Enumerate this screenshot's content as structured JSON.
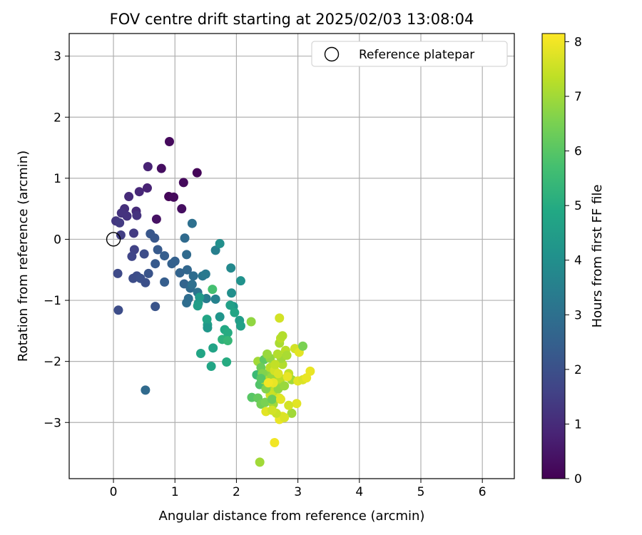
{
  "chart_data": {
    "type": "scatter",
    "title": "FOV centre drift starting at 2025/02/03 13:08:04",
    "xlabel": "Angular distance from reference (arcmin)",
    "ylabel": "Rotation from reference (arcmin)",
    "xlim": [
      -0.72,
      6.52
    ],
    "ylim": [
      -3.92,
      3.37
    ],
    "xticks": [
      0,
      1,
      2,
      3,
      4,
      5,
      6
    ],
    "yticks": [
      -3,
      -2,
      -1,
      0,
      1,
      2,
      3
    ],
    "xtick_labels": [
      "0",
      "1",
      "2",
      "3",
      "4",
      "5",
      "6"
    ],
    "ytick_labels": [
      "−3",
      "−2",
      "−1",
      "0",
      "1",
      "2",
      "3"
    ],
    "grid": true,
    "legend": {
      "placement": "top-right",
      "entries": [
        "Reference platepar"
      ]
    },
    "reference_point": {
      "x": 0,
      "y": 0,
      "label": "Reference platepar"
    },
    "colorbar": {
      "label": "Hours from first FF file",
      "range": [
        0,
        8.15
      ],
      "ticks": [
        0,
        1,
        2,
        3,
        4,
        5,
        6,
        7,
        8
      ],
      "tick_labels": [
        "0",
        "1",
        "2",
        "3",
        "4",
        "5",
        "6",
        "7",
        "8"
      ],
      "colormap": "viridis"
    },
    "points": [
      {
        "x": 0.91,
        "y": 1.6,
        "h": 0.2
      },
      {
        "x": 1.36,
        "y": 1.09,
        "h": 0.1
      },
      {
        "x": 0.78,
        "y": 1.16,
        "h": 0.3
      },
      {
        "x": 1.14,
        "y": 0.93,
        "h": 0.2
      },
      {
        "x": 0.9,
        "y": 0.7,
        "h": 0.1
      },
      {
        "x": 0.98,
        "y": 0.69,
        "h": 0.2
      },
      {
        "x": 1.11,
        "y": 0.5,
        "h": 0.3
      },
      {
        "x": 0.7,
        "y": 0.33,
        "h": 0.4
      },
      {
        "x": 0.56,
        "y": 1.19,
        "h": 0.8
      },
      {
        "x": 0.55,
        "y": 0.84,
        "h": 0.8
      },
      {
        "x": 0.42,
        "y": 0.78,
        "h": 0.9
      },
      {
        "x": 0.25,
        "y": 0.7,
        "h": 1.0
      },
      {
        "x": 0.18,
        "y": 0.5,
        "h": 1.1
      },
      {
        "x": 0.13,
        "y": 0.43,
        "h": 1.2
      },
      {
        "x": 0.22,
        "y": 0.38,
        "h": 1.2
      },
      {
        "x": 0.37,
        "y": 0.46,
        "h": 1.0
      },
      {
        "x": 0.38,
        "y": 0.39,
        "h": 1.2
      },
      {
        "x": 0.04,
        "y": 0.3,
        "h": 1.3
      },
      {
        "x": 0.1,
        "y": 0.27,
        "h": 1.4
      },
      {
        "x": 0.12,
        "y": 0.07,
        "h": 1.5
      },
      {
        "x": 0.33,
        "y": 0.1,
        "h": 1.4
      },
      {
        "x": 0.34,
        "y": -0.17,
        "h": 1.6
      },
      {
        "x": 0.3,
        "y": -0.28,
        "h": 1.7
      },
      {
        "x": 0.5,
        "y": -0.24,
        "h": 1.9
      },
      {
        "x": 0.07,
        "y": -0.56,
        "h": 1.8
      },
      {
        "x": 0.32,
        "y": -0.64,
        "h": 1.9
      },
      {
        "x": 0.38,
        "y": -0.6,
        "h": 1.9
      },
      {
        "x": 0.44,
        "y": -0.64,
        "h": 2.0
      },
      {
        "x": 0.52,
        "y": -0.71,
        "h": 2.0
      },
      {
        "x": 0.57,
        "y": -0.56,
        "h": 2.1
      },
      {
        "x": 0.08,
        "y": -1.16,
        "h": 1.9
      },
      {
        "x": 0.68,
        "y": -1.1,
        "h": 2.1
      },
      {
        "x": 0.52,
        "y": -2.47,
        "h": 2.8
      },
      {
        "x": 0.6,
        "y": 0.09,
        "h": 2.2
      },
      {
        "x": 0.67,
        "y": 0.02,
        "h": 2.2
      },
      {
        "x": 0.72,
        "y": -0.17,
        "h": 2.3
      },
      {
        "x": 0.68,
        "y": -0.4,
        "h": 2.3
      },
      {
        "x": 0.83,
        "y": -0.27,
        "h": 2.4
      },
      {
        "x": 0.83,
        "y": -0.7,
        "h": 2.4
      },
      {
        "x": 0.95,
        "y": -0.4,
        "h": 2.5
      },
      {
        "x": 1.0,
        "y": -0.36,
        "h": 2.5
      },
      {
        "x": 1.08,
        "y": -0.55,
        "h": 2.6
      },
      {
        "x": 1.15,
        "y": -0.73,
        "h": 2.6
      },
      {
        "x": 1.2,
        "y": -0.5,
        "h": 2.7
      },
      {
        "x": 1.16,
        "y": 0.02,
        "h": 2.8
      },
      {
        "x": 1.19,
        "y": -0.25,
        "h": 2.8
      },
      {
        "x": 1.28,
        "y": 0.26,
        "h": 3.0
      },
      {
        "x": 1.25,
        "y": -0.8,
        "h": 2.8
      },
      {
        "x": 1.3,
        "y": -0.6,
        "h": 2.9
      },
      {
        "x": 1.22,
        "y": -0.97,
        "h": 2.9
      },
      {
        "x": 1.19,
        "y": -1.04,
        "h": 2.9
      },
      {
        "x": 1.28,
        "y": -0.74,
        "h": 3.0
      },
      {
        "x": 1.37,
        "y": -0.87,
        "h": 3.1
      },
      {
        "x": 1.45,
        "y": -0.6,
        "h": 3.2
      },
      {
        "x": 1.5,
        "y": -0.57,
        "h": 3.3
      },
      {
        "x": 1.51,
        "y": -0.97,
        "h": 3.4
      },
      {
        "x": 1.66,
        "y": -0.18,
        "h": 3.5
      },
      {
        "x": 1.73,
        "y": -0.07,
        "h": 4.0
      },
      {
        "x": 1.66,
        "y": -0.98,
        "h": 3.6
      },
      {
        "x": 1.38,
        "y": -1.05,
        "h": 4.3
      },
      {
        "x": 1.4,
        "y": -0.95,
        "h": 4.4
      },
      {
        "x": 1.37,
        "y": -1.09,
        "h": 4.5
      },
      {
        "x": 1.52,
        "y": -1.31,
        "h": 4.8
      },
      {
        "x": 1.53,
        "y": -1.4,
        "h": 4.6
      },
      {
        "x": 1.53,
        "y": -1.45,
        "h": 4.3
      },
      {
        "x": 1.73,
        "y": -1.27,
        "h": 4.2
      },
      {
        "x": 1.91,
        "y": -0.47,
        "h": 3.8
      },
      {
        "x": 1.92,
        "y": -0.88,
        "h": 4.0
      },
      {
        "x": 1.95,
        "y": -1.1,
        "h": 4.3
      },
      {
        "x": 1.9,
        "y": -1.08,
        "h": 4.6
      },
      {
        "x": 1.97,
        "y": -1.2,
        "h": 4.8
      },
      {
        "x": 2.07,
        "y": -0.68,
        "h": 4.1
      },
      {
        "x": 2.05,
        "y": -1.33,
        "h": 4.5
      },
      {
        "x": 2.07,
        "y": -1.42,
        "h": 4.6
      },
      {
        "x": 1.81,
        "y": -1.48,
        "h": 4.9
      },
      {
        "x": 1.86,
        "y": -1.53,
        "h": 5.0
      },
      {
        "x": 1.77,
        "y": -1.64,
        "h": 5.2
      },
      {
        "x": 1.86,
        "y": -1.66,
        "h": 5.4
      },
      {
        "x": 1.62,
        "y": -1.78,
        "h": 4.7
      },
      {
        "x": 1.42,
        "y": -1.87,
        "h": 4.8
      },
      {
        "x": 1.59,
        "y": -2.08,
        "h": 4.8
      },
      {
        "x": 1.84,
        "y": -2.01,
        "h": 5.0
      },
      {
        "x": 1.61,
        "y": -0.82,
        "h": 5.7
      },
      {
        "x": 2.24,
        "y": -1.35,
        "h": 6.8
      },
      {
        "x": 2.25,
        "y": -2.59,
        "h": 6.0
      },
      {
        "x": 2.35,
        "y": -2.6,
        "h": 6.2
      },
      {
        "x": 2.4,
        "y": -2.7,
        "h": 6.4
      },
      {
        "x": 2.33,
        "y": -2.22,
        "h": 5.5
      },
      {
        "x": 2.38,
        "y": -2.38,
        "h": 5.9
      },
      {
        "x": 2.47,
        "y": -2.67,
        "h": 6.5
      },
      {
        "x": 2.35,
        "y": -2.0,
        "h": 7.0
      },
      {
        "x": 2.45,
        "y": -1.97,
        "h": 6.1
      },
      {
        "x": 2.4,
        "y": -2.1,
        "h": 6.3
      },
      {
        "x": 2.5,
        "y": -2.2,
        "h": 6.7
      },
      {
        "x": 2.45,
        "y": -2.3,
        "h": 7.2
      },
      {
        "x": 2.52,
        "y": -2.4,
        "h": 7.0
      },
      {
        "x": 2.55,
        "y": -2.1,
        "h": 7.3
      },
      {
        "x": 2.58,
        "y": -2.25,
        "h": 6.9
      },
      {
        "x": 2.6,
        "y": -2.5,
        "h": 7.4
      },
      {
        "x": 2.62,
        "y": -2.15,
        "h": 7.6
      },
      {
        "x": 2.65,
        "y": -2.35,
        "h": 7.1
      },
      {
        "x": 2.55,
        "y": -2.55,
        "h": 7.5
      },
      {
        "x": 2.6,
        "y": -2.7,
        "h": 7.0
      },
      {
        "x": 2.68,
        "y": -2.45,
        "h": 6.8
      },
      {
        "x": 2.7,
        "y": -2.6,
        "h": 7.7
      },
      {
        "x": 2.72,
        "y": -2.28,
        "h": 7.3
      },
      {
        "x": 2.75,
        "y": -2.05,
        "h": 7.2
      },
      {
        "x": 2.78,
        "y": -2.4,
        "h": 6.9
      },
      {
        "x": 2.73,
        "y": -1.95,
        "h": 7.0
      },
      {
        "x": 2.7,
        "y": -1.7,
        "h": 7.1
      },
      {
        "x": 2.72,
        "y": -1.62,
        "h": 7.3
      },
      {
        "x": 2.75,
        "y": -1.58,
        "h": 7.2
      },
      {
        "x": 2.7,
        "y": -1.29,
        "h": 7.6
      },
      {
        "x": 2.8,
        "y": -1.82,
        "h": 7.3
      },
      {
        "x": 2.82,
        "y": -1.9,
        "h": 7.1
      },
      {
        "x": 2.85,
        "y": -2.2,
        "h": 7.4
      },
      {
        "x": 2.9,
        "y": -2.3,
        "h": 7.0
      },
      {
        "x": 2.95,
        "y": -1.79,
        "h": 7.6
      },
      {
        "x": 3.02,
        "y": -1.85,
        "h": 7.8
      },
      {
        "x": 3.08,
        "y": -1.75,
        "h": 6.5
      },
      {
        "x": 3.0,
        "y": -2.32,
        "h": 7.8
      },
      {
        "x": 3.08,
        "y": -2.3,
        "h": 7.7
      },
      {
        "x": 3.14,
        "y": -2.27,
        "h": 7.9
      },
      {
        "x": 3.2,
        "y": -2.16,
        "h": 7.9
      },
      {
        "x": 2.98,
        "y": -2.69,
        "h": 7.8
      },
      {
        "x": 2.9,
        "y": -2.85,
        "h": 7.0
      },
      {
        "x": 2.85,
        "y": -2.72,
        "h": 7.6
      },
      {
        "x": 2.75,
        "y": -2.9,
        "h": 7.8
      },
      {
        "x": 2.7,
        "y": -2.95,
        "h": 7.9
      },
      {
        "x": 2.78,
        "y": -2.92,
        "h": 7.7
      },
      {
        "x": 2.65,
        "y": -2.85,
        "h": 7.5
      },
      {
        "x": 2.48,
        "y": -2.82,
        "h": 7.8
      },
      {
        "x": 2.58,
        "y": -2.8,
        "h": 7.6
      },
      {
        "x": 2.62,
        "y": -3.33,
        "h": 8.0
      },
      {
        "x": 2.38,
        "y": -3.65,
        "h": 7.0
      },
      {
        "x": 2.42,
        "y": -2.2,
        "h": 6.6
      },
      {
        "x": 2.55,
        "y": -1.95,
        "h": 6.8
      },
      {
        "x": 2.63,
        "y": -2.05,
        "h": 7.4
      },
      {
        "x": 2.67,
        "y": -1.88,
        "h": 7.2
      },
      {
        "x": 2.5,
        "y": -1.88,
        "h": 6.9
      },
      {
        "x": 2.58,
        "y": -2.62,
        "h": 6.3
      },
      {
        "x": 2.48,
        "y": -2.45,
        "h": 6.6
      },
      {
        "x": 2.4,
        "y": -2.28,
        "h": 6.0
      },
      {
        "x": 2.6,
        "y": -2.35,
        "h": 7.9
      },
      {
        "x": 2.68,
        "y": -2.2,
        "h": 7.7
      },
      {
        "x": 2.52,
        "y": -2.35,
        "h": 8.0
      },
      {
        "x": 2.72,
        "y": -2.62,
        "h": 7.8
      },
      {
        "x": 2.83,
        "y": -2.25,
        "h": 7.9
      }
    ]
  }
}
